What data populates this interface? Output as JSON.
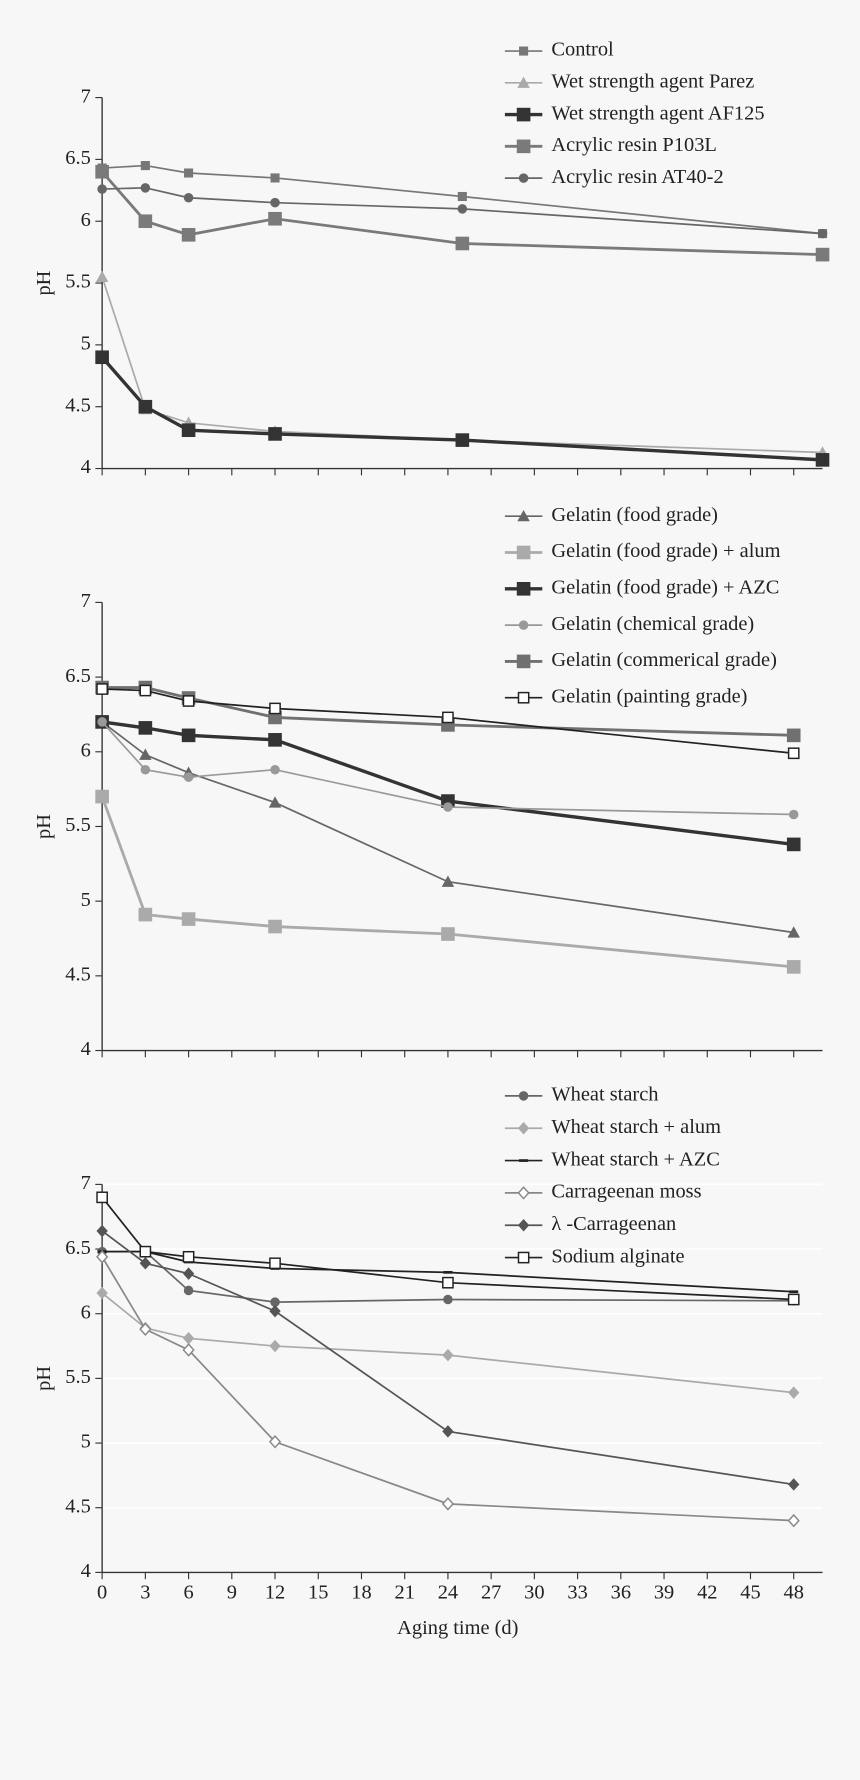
{
  "chart_data": [
    {
      "type": "line",
      "y_label": "pH",
      "xlim": [
        0,
        50
      ],
      "ylim": [
        4,
        7
      ],
      "yticks": [
        4,
        4.5,
        5,
        5.5,
        6,
        6.5,
        7
      ],
      "grid": false,
      "legend": "top-right",
      "series": [
        {
          "name": "Control",
          "color": "#777777",
          "marker": "square",
          "width": 1.5,
          "x": [
            0,
            3,
            6,
            12,
            25,
            50
          ],
          "values": [
            6.43,
            6.45,
            6.39,
            6.35,
            6.2,
            5.9
          ]
        },
        {
          "name": "Wet strength agent Parez",
          "color": "#aaaaaa",
          "marker": "triangle",
          "width": 1.5,
          "x": [
            0,
            3,
            6,
            12,
            25,
            50
          ],
          "values": [
            5.55,
            4.48,
            4.37,
            4.3,
            4.23,
            4.13
          ]
        },
        {
          "name": "Wet strength agent AF125",
          "color": "#333333",
          "marker": "bigsquare",
          "width": 3,
          "x": [
            0,
            3,
            6,
            12,
            25,
            50
          ],
          "values": [
            4.9,
            4.5,
            4.31,
            4.28,
            4.23,
            4.07
          ]
        },
        {
          "name": "Acrylic resin P103L",
          "color": "#7a7a7a",
          "marker": "bigsquare",
          "width": 2.5,
          "x": [
            0,
            3,
            6,
            12,
            25,
            50
          ],
          "values": [
            6.4,
            6.0,
            5.89,
            6.02,
            5.82,
            5.73
          ]
        },
        {
          "name": "Acrylic resin AT40-2",
          "color": "#666666",
          "marker": "circle",
          "width": 1.5,
          "x": [
            0,
            3,
            6,
            12,
            25,
            50
          ],
          "values": [
            6.26,
            6.27,
            6.19,
            6.15,
            6.1,
            5.9
          ]
        }
      ]
    },
    {
      "type": "line",
      "y_label": "pH",
      "xlim": [
        0,
        50
      ],
      "ylim": [
        4,
        7
      ],
      "yticks": [
        4,
        4.5,
        5,
        5.5,
        6,
        6.5,
        7
      ],
      "grid": false,
      "legend": "top-right",
      "series": [
        {
          "name": "Gelatin (food grade)",
          "color": "#666666",
          "marker": "triangle",
          "width": 1.5,
          "x": [
            0,
            3,
            6,
            12,
            24,
            48
          ],
          "values": [
            6.2,
            5.98,
            5.86,
            5.66,
            5.13,
            4.79
          ]
        },
        {
          "name": "Gelatin (food grade) + alum",
          "color": "#aaaaaa",
          "marker": "bigsquare",
          "width": 2.5,
          "x": [
            0,
            3,
            6,
            12,
            24,
            48
          ],
          "values": [
            5.7,
            4.91,
            4.88,
            4.83,
            4.78,
            4.56
          ]
        },
        {
          "name": "Gelatin (food grade) + AZC",
          "color": "#333333",
          "marker": "bigsquare",
          "width": 3,
          "x": [
            0,
            3,
            6,
            12,
            24,
            48
          ],
          "values": [
            6.2,
            6.16,
            6.11,
            6.08,
            5.67,
            5.38
          ]
        },
        {
          "name": "Gelatin (chemical grade)",
          "color": "#999999",
          "marker": "circle",
          "width": 1.5,
          "x": [
            0,
            3,
            6,
            12,
            24,
            48
          ],
          "values": [
            6.2,
            5.88,
            5.83,
            5.88,
            5.63,
            5.58
          ]
        },
        {
          "name": "Gelatin (commerical grade)",
          "color": "#707070",
          "marker": "bigsquare",
          "width": 2.5,
          "x": [
            0,
            3,
            6,
            12,
            24,
            48
          ],
          "values": [
            6.43,
            6.43,
            6.36,
            6.23,
            6.18,
            6.11
          ]
        },
        {
          "name": "Gelatin (painting grade)",
          "color": "#222222",
          "marker": "opensquare",
          "width": 1.5,
          "x": [
            0,
            3,
            6,
            12,
            24,
            48
          ],
          "values": [
            6.42,
            6.41,
            6.34,
            6.29,
            6.23,
            5.99
          ]
        }
      ]
    },
    {
      "type": "line",
      "x_label": "Aging time (d)",
      "y_label": "pH",
      "xlim": [
        0,
        50
      ],
      "ylim": [
        4,
        7
      ],
      "yticks": [
        4,
        4.5,
        5,
        5.5,
        6,
        6.5,
        7
      ],
      "xticks": [
        0,
        3,
        6,
        9,
        12,
        15,
        18,
        21,
        24,
        27,
        30,
        33,
        36,
        39,
        42,
        45,
        48
      ],
      "grid": true,
      "legend": "top-right",
      "series": [
        {
          "name": "Wheat starch",
          "color": "#666666",
          "marker": "circle",
          "width": 1.5,
          "x": [
            0,
            3,
            6,
            12,
            24,
            48
          ],
          "values": [
            6.48,
            6.48,
            6.18,
            6.09,
            6.11,
            6.1
          ]
        },
        {
          "name": "Wheat starch + alum",
          "color": "#aaaaaa",
          "marker": "diamond",
          "width": 1.5,
          "x": [
            0,
            3,
            6,
            12,
            24,
            48
          ],
          "values": [
            6.16,
            5.89,
            5.81,
            5.75,
            5.68,
            5.39
          ]
        },
        {
          "name": "Wheat starch + AZC",
          "color": "#222222",
          "marker": "dash",
          "width": 1.5,
          "x": [
            0,
            3,
            6,
            12,
            24,
            48
          ],
          "values": [
            6.48,
            6.48,
            6.4,
            6.35,
            6.32,
            6.17
          ]
        },
        {
          "name": "Carrageenan moss",
          "color": "#888888",
          "marker": "opendiamond",
          "width": 1.5,
          "x": [
            0,
            3,
            6,
            12,
            24,
            48
          ],
          "values": [
            6.44,
            5.88,
            5.72,
            5.01,
            4.53,
            4.4
          ]
        },
        {
          "name": "λ -Carrageenan",
          "color": "#555555",
          "marker": "diamond",
          "width": 1.5,
          "x": [
            0,
            3,
            6,
            12,
            24,
            48
          ],
          "values": [
            6.64,
            6.39,
            6.31,
            6.02,
            5.09,
            4.68
          ]
        },
        {
          "name": "Sodium alginate",
          "color": "#222222",
          "marker": "opensquare",
          "width": 1.5,
          "x": [
            0,
            3,
            6,
            12,
            24,
            48
          ],
          "values": [
            6.9,
            6.48,
            6.44,
            6.39,
            6.24,
            6.11
          ]
        }
      ]
    }
  ]
}
